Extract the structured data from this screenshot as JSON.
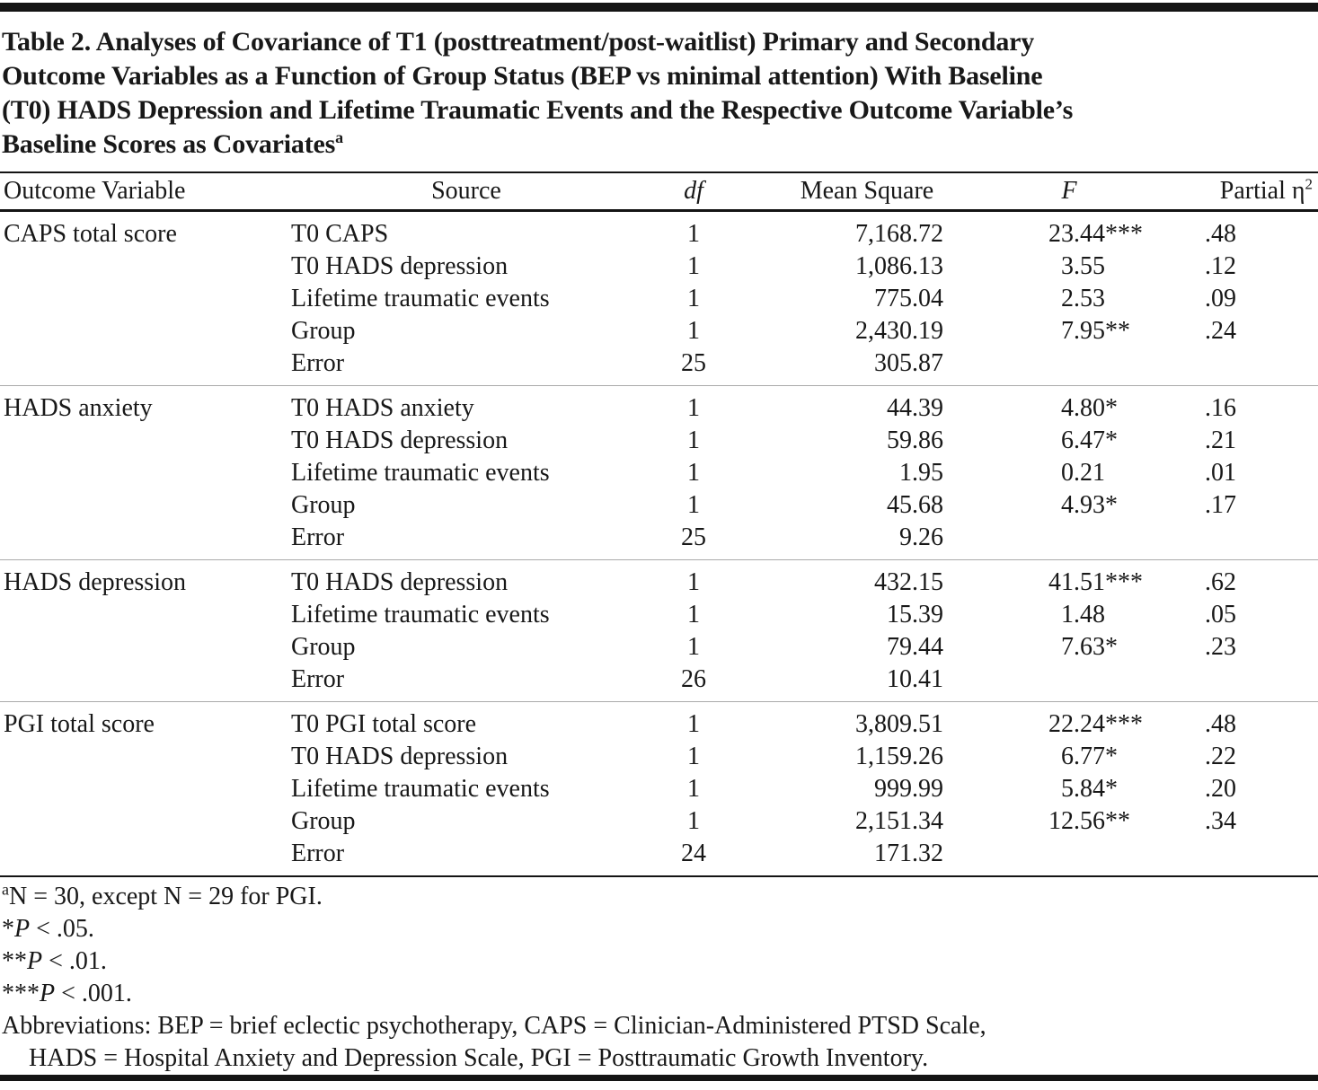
{
  "title": {
    "lines": [
      "Table 2. Analyses of Covariance of T1 (posttreatment/post-waitlist) Primary and Secondary",
      "Outcome Variables as a Function of Group Status (BEP vs minimal attention) With Baseline",
      "(T0) HADS Depression and Lifetime Traumatic Events and the Respective Outcome Variable’s",
      "Baseline Scores as Covariates"
    ],
    "superscript": "a"
  },
  "table": {
    "columns": {
      "outcome": "Outcome Variable",
      "source": "Source",
      "df": "df",
      "mean_square": "Mean Square",
      "f": "F",
      "partial_eta": "Partial η",
      "partial_eta_sup": "2"
    },
    "sections": [
      {
        "outcome": "CAPS total score",
        "rows": [
          {
            "source": "T0 CAPS",
            "df": "1",
            "ms": "7,168.72",
            "f": "23.44",
            "stars": "***",
            "eta": ".48"
          },
          {
            "source": "T0 HADS depression",
            "df": "1",
            "ms": "1,086.13",
            "f": "3.55",
            "stars": "",
            "eta": ".12"
          },
          {
            "source": "Lifetime traumatic events",
            "df": "1",
            "ms": "775.04",
            "f": "2.53",
            "stars": "",
            "eta": ".09"
          },
          {
            "source": "Group",
            "df": "1",
            "ms": "2,430.19",
            "f": "7.95",
            "stars": "**",
            "eta": ".24"
          },
          {
            "source": "Error",
            "df": "25",
            "ms": "305.87",
            "f": "",
            "stars": "",
            "eta": ""
          }
        ]
      },
      {
        "outcome": "HADS anxiety",
        "rows": [
          {
            "source": "T0 HADS anxiety",
            "df": "1",
            "ms": "44.39",
            "f": "4.80",
            "stars": "*",
            "eta": ".16"
          },
          {
            "source": "T0 HADS depression",
            "df": "1",
            "ms": "59.86",
            "f": "6.47",
            "stars": "*",
            "eta": ".21"
          },
          {
            "source": "Lifetime traumatic events",
            "df": "1",
            "ms": "1.95",
            "f": "0.21",
            "stars": "",
            "eta": ".01"
          },
          {
            "source": "Group",
            "df": "1",
            "ms": "45.68",
            "f": "4.93",
            "stars": "*",
            "eta": ".17"
          },
          {
            "source": "Error",
            "df": "25",
            "ms": "9.26",
            "f": "",
            "stars": "",
            "eta": ""
          }
        ]
      },
      {
        "outcome": "HADS depression",
        "rows": [
          {
            "source": "T0 HADS depression",
            "df": "1",
            "ms": "432.15",
            "f": "41.51",
            "stars": "***",
            "eta": ".62"
          },
          {
            "source": "Lifetime traumatic events",
            "df": "1",
            "ms": "15.39",
            "f": "1.48",
            "stars": "",
            "eta": ".05"
          },
          {
            "source": "Group",
            "df": "1",
            "ms": "79.44",
            "f": "7.63",
            "stars": "*",
            "eta": ".23"
          },
          {
            "source": "Error",
            "df": "26",
            "ms": "10.41",
            "f": "",
            "stars": "",
            "eta": ""
          }
        ]
      },
      {
        "outcome": "PGI total score",
        "rows": [
          {
            "source": "T0 PGI total score",
            "df": "1",
            "ms": "3,809.51",
            "f": "22.24",
            "stars": "***",
            "eta": ".48"
          },
          {
            "source": "T0 HADS depression",
            "df": "1",
            "ms": "1,159.26",
            "f": "6.77",
            "stars": "*",
            "eta": ".22"
          },
          {
            "source": "Lifetime traumatic events",
            "df": "1",
            "ms": "999.99",
            "f": "5.84",
            "stars": "*",
            "eta": ".20"
          },
          {
            "source": "Group",
            "df": "1",
            "ms": "2,151.34",
            "f": "12.56",
            "stars": "**",
            "eta": ".34"
          },
          {
            "source": "Error",
            "df": "24",
            "ms": "171.32",
            "f": "",
            "stars": "",
            "eta": ""
          }
        ]
      }
    ]
  },
  "footnotes": {
    "sample": {
      "sup": "a",
      "text": "N = 30, except N = 29 for PGI."
    },
    "sig": [
      {
        "stars": "*",
        "p": "P",
        "rest": " < .05."
      },
      {
        "stars": "**",
        "p": "P",
        "rest": " < .01."
      },
      {
        "stars": "***",
        "p": "P",
        "rest": " < .001."
      }
    ],
    "abbreviations_line1": "Abbreviations: BEP = brief eclectic psychotherapy, CAPS = Clinician-Administered PTSD Scale,",
    "abbreviations_line2": "HADS = Hospital Anxiety and Depression Scale, PGI = Posttraumatic Growth Inventory."
  }
}
